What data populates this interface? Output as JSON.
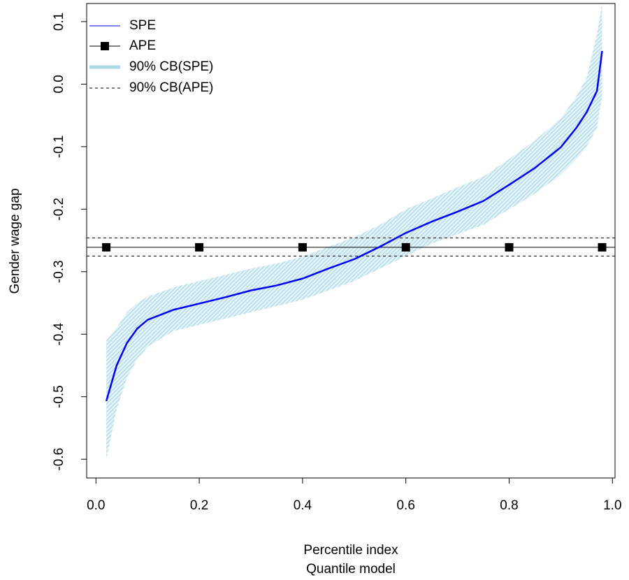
{
  "chart_data": {
    "type": "line",
    "xlabel": "Percentile index",
    "subtitle": "Quantile model",
    "ylabel": "Gender wage gap",
    "xlim": [
      -0.018,
      1.005
    ],
    "ylim": [
      -0.63,
      0.129
    ],
    "xticks": [
      {
        "value": 0,
        "label": "0.0"
      },
      0.2,
      0.4,
      0.6,
      0.8,
      {
        "value": 1,
        "label": "1.0"
      }
    ],
    "yticks": [
      -0.6,
      -0.5,
      -0.4,
      -0.3,
      -0.2,
      -0.1,
      {
        "value": 0,
        "label": "0.0"
      },
      0.1
    ],
    "legend": "top-left",
    "series": [
      {
        "name": "SPE",
        "color": "#0000ff",
        "kind": "line",
        "x": [
          0.02,
          0.04,
          0.06,
          0.08,
          0.1,
          0.15,
          0.2,
          0.25,
          0.3,
          0.35,
          0.4,
          0.45,
          0.5,
          0.55,
          0.6,
          0.65,
          0.7,
          0.75,
          0.8,
          0.85,
          0.9,
          0.93,
          0.95,
          0.97,
          0.98
        ],
        "values": [
          -0.507,
          -0.45,
          -0.414,
          -0.391,
          -0.377,
          -0.361,
          -0.351,
          -0.341,
          -0.33,
          -0.322,
          -0.311,
          -0.295,
          -0.28,
          -0.26,
          -0.238,
          -0.22,
          -0.204,
          -0.187,
          -0.161,
          -0.134,
          -0.101,
          -0.07,
          -0.045,
          -0.011,
          0.053
        ]
      },
      {
        "name": "APE",
        "color": "#000000",
        "kind": "points",
        "x": [
          0.02,
          0.2,
          0.4,
          0.6,
          0.8,
          0.98
        ],
        "values": [
          -0.261,
          -0.261,
          -0.261,
          -0.261,
          -0.261,
          -0.261
        ]
      },
      {
        "name": "90% CB(SPE)",
        "color": "#add8e6",
        "kind": "band",
        "x": [
          0.02,
          0.04,
          0.06,
          0.08,
          0.1,
          0.15,
          0.2,
          0.25,
          0.3,
          0.35,
          0.4,
          0.45,
          0.5,
          0.55,
          0.6,
          0.65,
          0.7,
          0.75,
          0.8,
          0.85,
          0.9,
          0.93,
          0.95,
          0.97,
          0.98
        ],
        "lower": [
          -0.6,
          -0.52,
          -0.47,
          -0.44,
          -0.42,
          -0.395,
          -0.385,
          -0.375,
          -0.365,
          -0.355,
          -0.345,
          -0.33,
          -0.315,
          -0.295,
          -0.275,
          -0.255,
          -0.24,
          -0.225,
          -0.2,
          -0.175,
          -0.145,
          -0.12,
          -0.1,
          -0.07,
          -0.02
        ],
        "upper": [
          -0.41,
          -0.39,
          -0.365,
          -0.35,
          -0.34,
          -0.325,
          -0.315,
          -0.305,
          -0.295,
          -0.287,
          -0.276,
          -0.26,
          -0.245,
          -0.225,
          -0.2,
          -0.183,
          -0.165,
          -0.148,
          -0.12,
          -0.09,
          -0.055,
          -0.02,
          0.01,
          0.08,
          0.13
        ]
      },
      {
        "name": "90% CB(APE)",
        "color": "#000000",
        "kind": "hlines",
        "values": [
          -0.246,
          -0.275
        ]
      }
    ]
  }
}
